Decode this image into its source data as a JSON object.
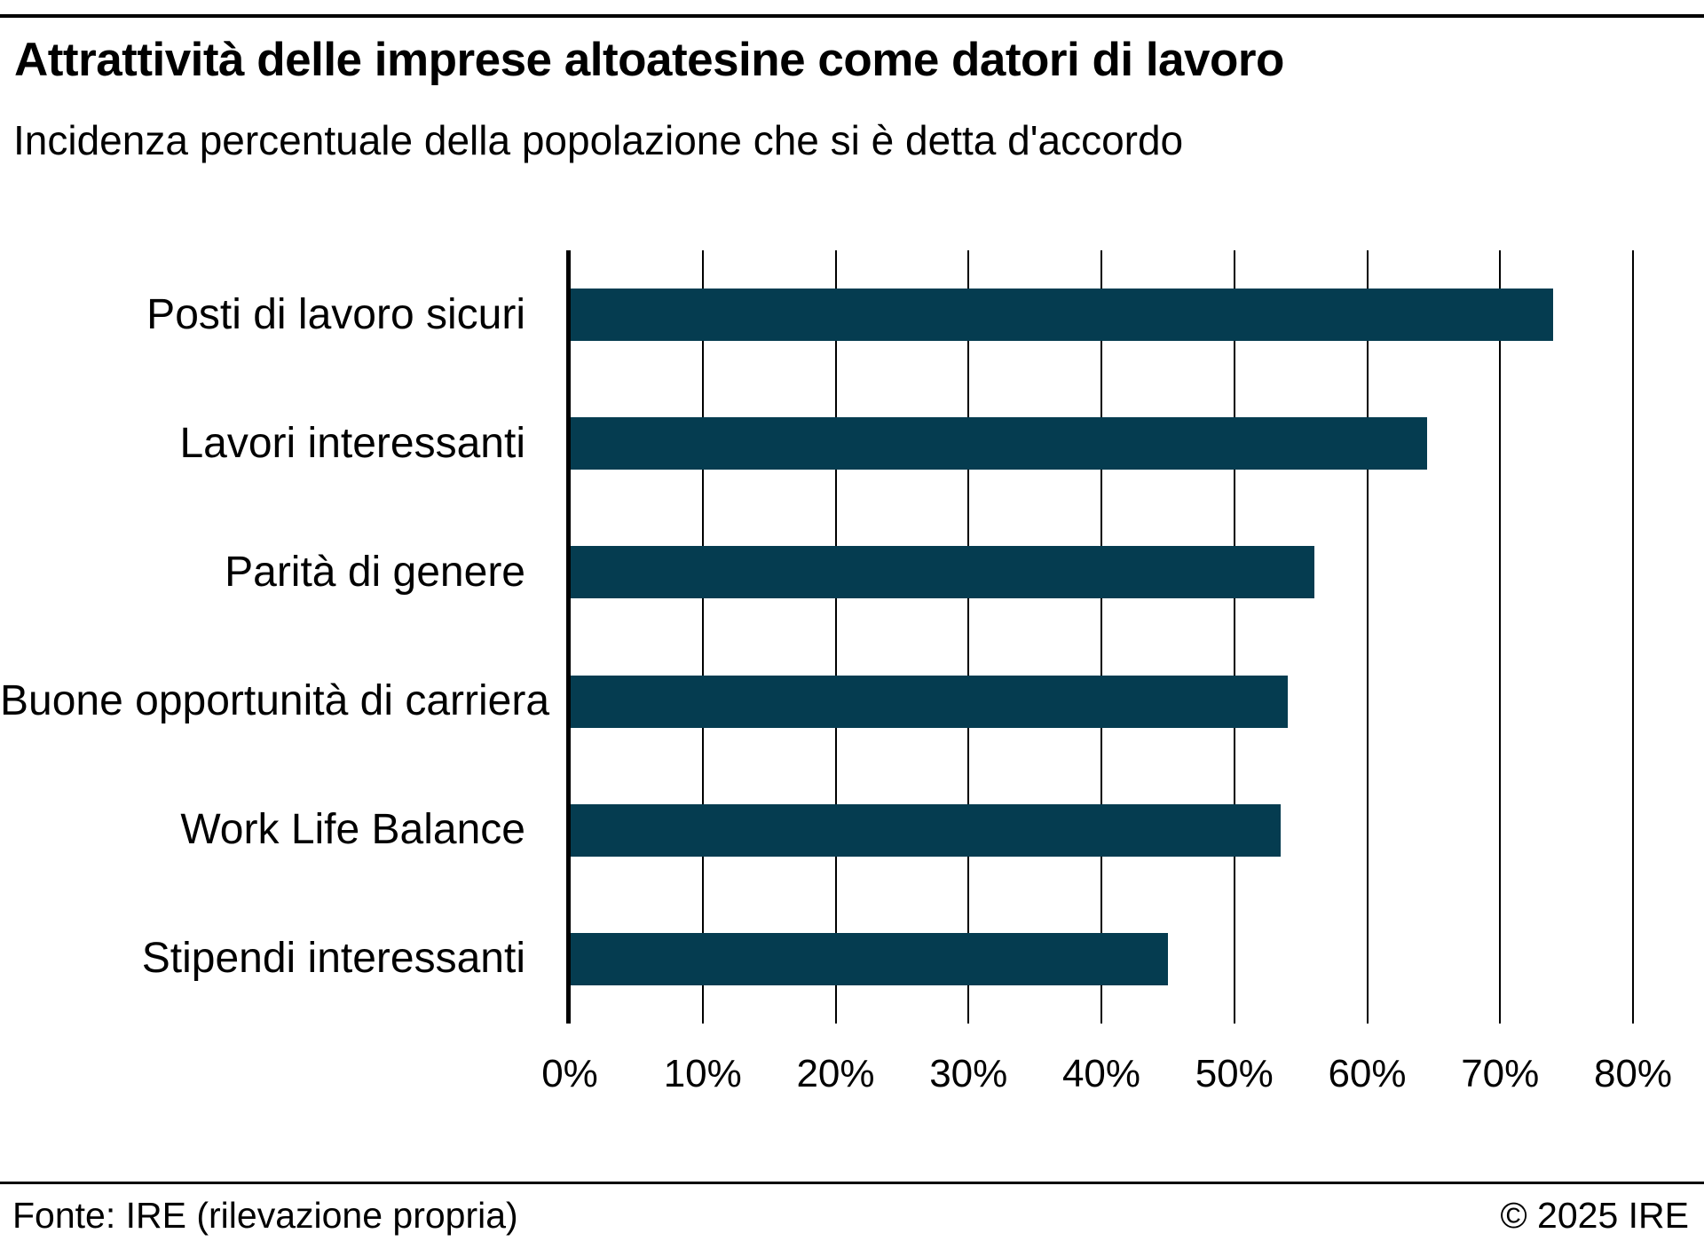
{
  "header": {
    "title": "Attrattività delle imprese altoatesine come datori di lavoro",
    "subtitle": "Incidenza percentuale della popolazione che si è detta d'accordo"
  },
  "chart_data": {
    "type": "bar",
    "orientation": "horizontal",
    "title": "Attrattività delle imprese altoatesine come datori di lavoro",
    "subtitle": "Incidenza percentuale della popolazione che si è detta d'accordo",
    "categories": [
      "Posti di lavoro sicuri",
      "Lavori interessanti",
      "Parità di genere",
      "Buone opportunità di carriera",
      "Work Life Balance",
      "Stipendi interessanti"
    ],
    "values": [
      74,
      64.5,
      56,
      54,
      53.5,
      45
    ],
    "unit": "%",
    "xlabel": "",
    "ylabel": "",
    "xlim": [
      0,
      80
    ],
    "x_tick_labels": [
      "0%",
      "10%",
      "20%",
      "30%",
      "40%",
      "50%",
      "60%",
      "70%",
      "80%"
    ],
    "grid": true,
    "legend": false,
    "bar_color": "#053c50",
    "axis_color": "#000000",
    "text_color": "#000000",
    "background_color": "#ffffff"
  },
  "footer": {
    "source": "Fonte: IRE (rilevazione propria)",
    "copyright": "© 2025 IRE"
  }
}
